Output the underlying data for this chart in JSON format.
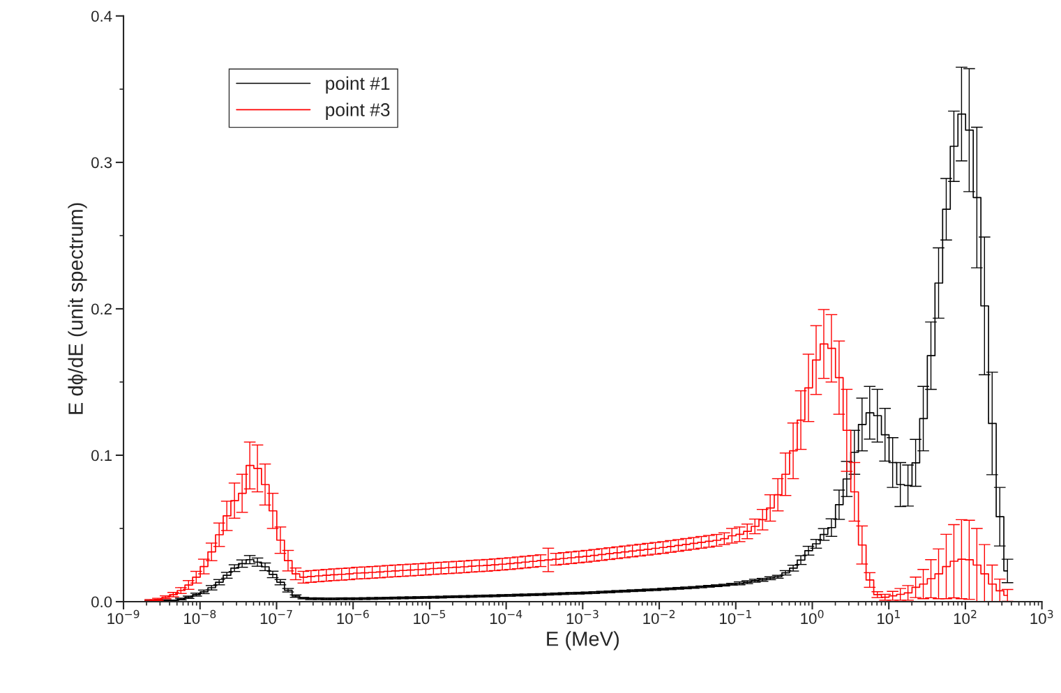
{
  "chart_data": {
    "type": "step",
    "xlabel": "E (MeV)",
    "ylabel": "E dϕ/dE (unit spectrum)",
    "log": "x",
    "grid": false,
    "legend": "top left",
    "xlim": [
      1e-09,
      1000
    ],
    "ylim": [
      0,
      0.4
    ],
    "xticks": [
      {
        "value": 1e-09,
        "label": "10$^{−9}$"
      },
      {
        "value": 1e-08,
        "label": "10$^{−8}$"
      },
      {
        "value": 1e-07,
        "label": "10$^{−7}$"
      },
      {
        "value": 1e-06,
        "label": "10$^{−6}$"
      },
      {
        "value": 1e-05,
        "label": "10$^{−5}$"
      },
      {
        "value": 0.0001,
        "label": "10$^{−4}$"
      },
      {
        "value": 0.001,
        "label": "10$^{−3}$"
      },
      {
        "value": 0.01,
        "label": "10$^{−2}$"
      },
      {
        "value": 0.1,
        "label": "10$^{−1}$"
      },
      {
        "value": 1,
        "label": "10$^{0}$"
      },
      {
        "value": 10,
        "label": "10$^{1}$"
      },
      {
        "value": 100,
        "label": "10$^{2}$"
      },
      {
        "value": 1000,
        "label": "10$^{3}$"
      }
    ],
    "yticks": [
      {
        "value": 0,
        "label": "0.0"
      },
      {
        "value": 0.1,
        "label": "0.1"
      },
      {
        "value": 0.2,
        "label": "0.2"
      },
      {
        "value": 0.3,
        "label": "0.3"
      },
      {
        "value": 0.4,
        "label": "0.4"
      }
    ],
    "x": [
      2.239e-09,
      2.818e-09,
      3.548e-09,
      4.467e-09,
      5.623e-09,
      7.079e-09,
      8.913e-09,
      1.122e-08,
      1.413e-08,
      1.778e-08,
      2.239e-08,
      2.818e-08,
      3.548e-08,
      4.467e-08,
      5.623e-08,
      7.079e-08,
      8.913e-08,
      1.122e-07,
      1.413e-07,
      1.778e-07,
      2.239e-07,
      2.818e-07,
      3.548e-07,
      4.467e-07,
      5.623e-07,
      7.079e-07,
      8.913e-07,
      1.122e-06,
      1.413e-06,
      1.778e-06,
      2.239e-06,
      2.818e-06,
      3.548e-06,
      4.467e-06,
      5.623e-06,
      7.079e-06,
      8.913e-06,
      1.122e-05,
      1.413e-05,
      1.778e-05,
      2.239e-05,
      2.818e-05,
      3.548e-05,
      4.467e-05,
      5.623e-05,
      7.079e-05,
      8.913e-05,
      0.0001122,
      0.0001413,
      0.0001778,
      0.0002239,
      0.0002818,
      0.0003548,
      0.0004467,
      0.0005623,
      0.0007079,
      0.0008913,
      0.001122,
      0.001413,
      0.001778,
      0.002239,
      0.002818,
      0.003548,
      0.004467,
      0.005623,
      0.007079,
      0.008913,
      0.01122,
      0.01413,
      0.01778,
      0.02239,
      0.02818,
      0.03548,
      0.04467,
      0.05623,
      0.07079,
      0.08913,
      0.1122,
      0.1413,
      0.1778,
      0.2239,
      0.2818,
      0.3548,
      0.4467,
      0.5623,
      0.7079,
      0.8913,
      1.122,
      1.413,
      1.778,
      2.239,
      2.818,
      3.548,
      4.467,
      5.623,
      7.079,
      8.913,
      11.22,
      14.13,
      17.78,
      22.39,
      28.18,
      35.48,
      44.67,
      56.23,
      70.79,
      89.13,
      112.2,
      141.3,
      177.8,
      223.9,
      281.8,
      354.8
    ],
    "series": [
      {
        "name": "point #1",
        "color": "#000000",
        "values": [
          0.0003,
          0.0005,
          0.0007,
          0.001,
          0.0018,
          0.003,
          0.0048,
          0.0067,
          0.0095,
          0.0133,
          0.018,
          0.0229,
          0.026,
          0.0287,
          0.027,
          0.0238,
          0.0186,
          0.0133,
          0.0078,
          0.0038,
          0.0024,
          0.002,
          0.002,
          0.0019,
          0.0019,
          0.002,
          0.002,
          0.002,
          0.0021,
          0.0022,
          0.0023,
          0.0024,
          0.0025,
          0.0026,
          0.0027,
          0.0028,
          0.0029,
          0.003,
          0.0031,
          0.0033,
          0.0034,
          0.0035,
          0.0036,
          0.0038,
          0.0039,
          0.004,
          0.0042,
          0.0043,
          0.0045,
          0.0046,
          0.0048,
          0.0049,
          0.0051,
          0.0053,
          0.0055,
          0.0057,
          0.0058,
          0.006,
          0.0062,
          0.0065,
          0.0067,
          0.007,
          0.0072,
          0.0075,
          0.0077,
          0.008,
          0.0082,
          0.0085,
          0.0088,
          0.0091,
          0.0094,
          0.0097,
          0.0101,
          0.0105,
          0.0109,
          0.0113,
          0.0119,
          0.0125,
          0.0133,
          0.0143,
          0.0149,
          0.016,
          0.017,
          0.0197,
          0.0229,
          0.0284,
          0.0348,
          0.0395,
          0.0459,
          0.0506,
          0.0662,
          0.0838,
          0.102,
          0.121,
          0.129,
          0.127,
          0.114,
          0.095,
          0.08,
          0.0793,
          0.0948,
          0.125,
          0.168,
          0.2176,
          0.268,
          0.311,
          0.333,
          0.322,
          0.276,
          0.202,
          0.1217,
          0.058,
          0.021
        ],
        "errors": [
          0.0005,
          0.0005,
          0.0005,
          null,
          0.0006,
          0.0008,
          0.001,
          0.0012,
          0.0015,
          0.0018,
          0.002,
          0.0023,
          0.0025,
          0.0028,
          0.0028,
          0.0026,
          0.0022,
          0.0018,
          0.0012,
          0.0008,
          0.0005,
          0.0006,
          0.0006,
          0.0006,
          0.0006,
          0.0006,
          0.0006,
          0.0006,
          0.0006,
          0.0006,
          0.0006,
          0.0006,
          0.0006,
          0.0006,
          0.0006,
          0.0006,
          0.0006,
          0.0006,
          0.0006,
          0.0006,
          0.0006,
          0.0006,
          0.0006,
          0.0006,
          0.0006,
          0.0006,
          0.0006,
          0.0006,
          0.0006,
          0.0006,
          0.0006,
          0.0006,
          0.0006,
          0.0006,
          0.0006,
          0.0006,
          0.0006,
          0.0006,
          0.0006,
          0.0006,
          0.0006,
          0.0006,
          0.0006,
          0.0006,
          0.0006,
          0.0006,
          0.0006,
          0.0006,
          0.0006,
          0.0006,
          0.0006,
          0.0006,
          0.0006,
          0.0006,
          0.0006,
          0.0006,
          0.0006,
          0.001,
          0.001,
          0.001,
          0.001,
          0.001,
          0.001,
          0.0015,
          0.002,
          0.003,
          0.003,
          0.003,
          0.004,
          0.006,
          0.01,
          0.012,
          0.015,
          0.018,
          0.018,
          0.018,
          0.018,
          0.017,
          0.015,
          0.014,
          0.016,
          0.022,
          0.023,
          0.024,
          0.021,
          0.024,
          0.032,
          0.042,
          0.048,
          0.047,
          0.035,
          0.02,
          0.008
        ]
      },
      {
        "name": "point #3",
        "color": "#ff0000",
        "values": [
          0.001,
          0.0015,
          0.003,
          0.0048,
          0.0076,
          0.0114,
          0.0167,
          0.024,
          0.034,
          0.0457,
          0.0586,
          0.069,
          0.074,
          0.093,
          0.091,
          0.08,
          0.062,
          0.042,
          0.028,
          0.019,
          0.0167,
          0.0172,
          0.0176,
          0.018,
          0.0184,
          0.0187,
          0.019,
          0.0195,
          0.0197,
          0.02,
          0.0203,
          0.0207,
          0.021,
          0.0213,
          0.0216,
          0.0219,
          0.0222,
          0.0226,
          0.0229,
          0.0232,
          0.0235,
          0.0238,
          0.0242,
          0.0245,
          0.0248,
          0.0252,
          0.0256,
          0.026,
          0.0265,
          0.027,
          0.0275,
          0.028,
          0.0285,
          0.029,
          0.0295,
          0.03,
          0.0305,
          0.031,
          0.0316,
          0.0322,
          0.0328,
          0.0334,
          0.034,
          0.0346,
          0.0352,
          0.0358,
          0.0364,
          0.037,
          0.0377,
          0.0384,
          0.0391,
          0.0398,
          0.0405,
          0.0412,
          0.0419,
          0.043,
          0.045,
          0.046,
          0.048,
          0.0514,
          0.056,
          0.064,
          0.073,
          0.087,
          0.103,
          0.124,
          0.146,
          0.165,
          0.176,
          0.173,
          0.153,
          0.117,
          0.075,
          0.0387,
          0.0148,
          0.0048,
          0.003,
          0.004,
          0.005,
          0.006,
          0.0098,
          0.012,
          0.0157,
          0.019,
          0.024,
          0.0276,
          0.029,
          0.0286,
          0.025,
          0.019,
          0.012,
          0.0074,
          0.0043
        ],
        "errors": [
          0.0005,
          0.0008,
          0.001,
          0.0015,
          0.002,
          0.003,
          0.004,
          0.005,
          0.006,
          0.008,
          0.01,
          0.012,
          0.013,
          0.016,
          0.016,
          0.014,
          0.012,
          0.009,
          0.007,
          0.004,
          0.004,
          0.004,
          0.004,
          0.004,
          0.004,
          0.004,
          0.004,
          0.004,
          0.004,
          0.004,
          0.004,
          0.004,
          0.004,
          0.004,
          0.004,
          0.004,
          0.004,
          0.004,
          0.004,
          0.004,
          0.004,
          0.004,
          0.004,
          0.004,
          0.004,
          0.004,
          0.004,
          0.004,
          0.004,
          0.004,
          0.004,
          0.004,
          0.008,
          0.004,
          0.004,
          0.004,
          0.004,
          0.004,
          0.004,
          0.004,
          0.004,
          0.004,
          0.004,
          0.004,
          0.004,
          0.004,
          0.004,
          0.004,
          0.004,
          0.004,
          0.004,
          0.004,
          0.004,
          0.004,
          0.004,
          0.004,
          0.005,
          0.005,
          0.005,
          0.005,
          0.007,
          0.009,
          0.011,
          0.0145,
          0.019,
          0.02,
          0.023,
          0.0235,
          0.0235,
          0.023,
          0.025,
          0.028,
          0.02,
          0.013,
          0.005,
          0.002,
          0.002,
          0.003,
          0.004,
          0.005,
          0.007,
          0.01,
          0.013,
          0.017,
          0.022,
          0.025,
          0.027,
          0.027,
          0.025,
          0.02,
          0.013,
          0.008,
          0.004
        ]
      }
    ]
  }
}
